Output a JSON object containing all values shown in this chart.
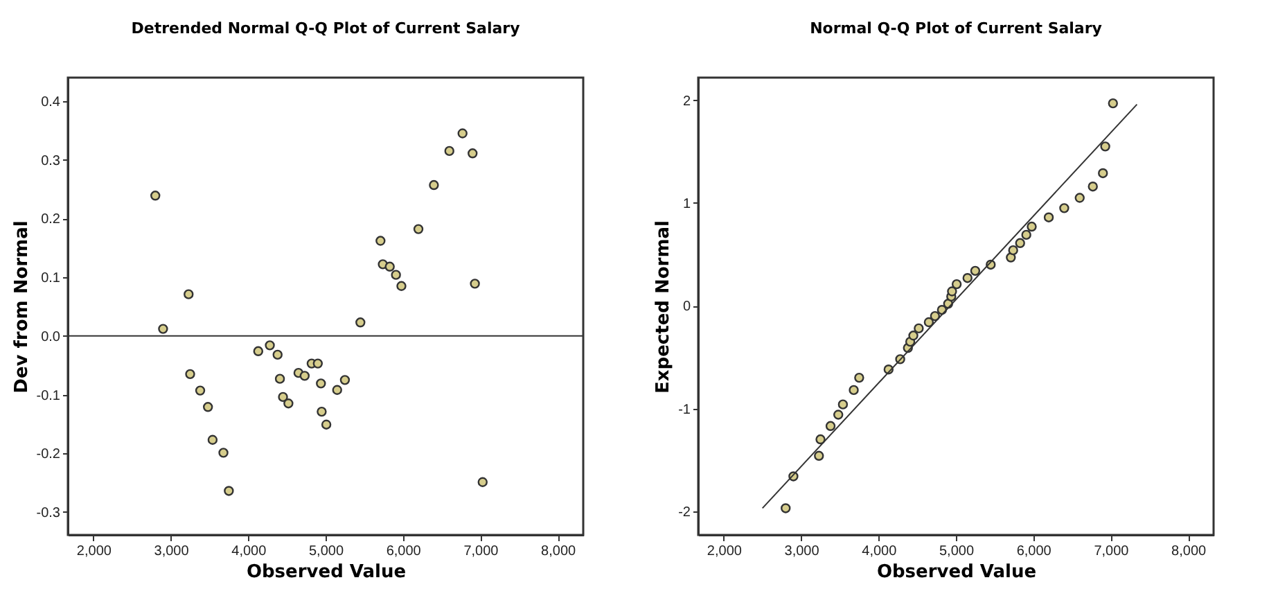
{
  "chart_data": [
    {
      "type": "scatter",
      "title": "Detrended Normal Q-Q Plot of Current Salary",
      "xlabel": "Observed Value",
      "ylabel": "Dev from Normal",
      "x": [
        2800,
        2900,
        3230,
        3250,
        3380,
        3480,
        3540,
        3680,
        3750,
        4130,
        4280,
        4380,
        4410,
        4450,
        4520,
        4650,
        4730,
        4820,
        4900,
        4940,
        4950,
        5010,
        5150,
        5250,
        5450,
        5710,
        5740,
        5830,
        5910,
        5980,
        6200,
        6400,
        6600,
        6770,
        6900,
        6930,
        7030
      ],
      "series": [
        {
          "color": "#d6cd8c",
          "marker": "circle",
          "values": [
            0.239,
            0.012,
            0.071,
            -0.065,
            -0.093,
            -0.121,
            -0.177,
            -0.199,
            -0.264,
            -0.026,
            -0.016,
            -0.032,
            -0.073,
            -0.104,
            -0.115,
            -0.063,
            -0.068,
            -0.047,
            -0.047,
            -0.081,
            -0.129,
            -0.151,
            -0.092,
            -0.075,
            0.023,
            0.162,
            0.122,
            0.118,
            0.104,
            0.085,
            0.182,
            0.257,
            0.315,
            0.345,
            0.311,
            0.089,
            -0.249
          ]
        }
      ],
      "xlim": [
        1670,
        8330
      ],
      "ylim": [
        -0.339,
        0.44
      ],
      "xticks": [
        {
          "value": 2000,
          "label": "2,000"
        },
        {
          "value": 3000,
          "label": "3,000"
        },
        {
          "value": 4000,
          "label": "4,000"
        },
        {
          "value": 5000,
          "label": "5,000"
        },
        {
          "value": 6000,
          "label": "6,000"
        },
        {
          "value": 7000,
          "label": "7,000"
        },
        {
          "value": 8000,
          "label": "8,000"
        }
      ],
      "yticks": [
        -0.3,
        -0.2,
        -0.1,
        {
          "value": 0,
          "label": "0.0"
        },
        0.1,
        0.2,
        0.3,
        0.4
      ],
      "ref_lines": [
        {
          "axis": "y",
          "value": 0,
          "color": "#333333"
        }
      ]
    },
    {
      "type": "scatter",
      "title": "Normal Q-Q Plot of Current Salary",
      "xlabel": "Observed Value",
      "ylabel": "Expected Normal",
      "x": [
        2800,
        2900,
        3230,
        3250,
        3380,
        3480,
        3540,
        3680,
        3750,
        4130,
        4280,
        4380,
        4410,
        4450,
        4520,
        4650,
        4730,
        4820,
        4900,
        4940,
        4950,
        5010,
        5150,
        5250,
        5450,
        5710,
        5740,
        5830,
        5910,
        5980,
        6200,
        6400,
        6600,
        6770,
        6900,
        6930,
        7030
      ],
      "series": [
        {
          "color": "#d6cd8c",
          "marker": "circle",
          "values": [
            -1.97,
            -1.66,
            -1.46,
            -1.3,
            -1.17,
            -1.06,
            -0.96,
            -0.82,
            -0.7,
            -0.62,
            -0.52,
            -0.41,
            -0.35,
            -0.29,
            -0.22,
            -0.16,
            -0.1,
            -0.04,
            0.02,
            0.09,
            0.14,
            0.21,
            0.27,
            0.34,
            0.4,
            0.47,
            0.54,
            0.61,
            0.69,
            0.77,
            0.86,
            0.95,
            1.05,
            1.16,
            1.29,
            1.55,
            1.97
          ]
        },
        {
          "type": "line",
          "color": "#333333",
          "marker": "none",
          "x": [
            2500,
            7340
          ],
          "values": [
            -1.97,
            1.96
          ]
        }
      ],
      "xlim": [
        1670,
        8330
      ],
      "ylim": [
        -2.23,
        2.22
      ],
      "xticks": [
        {
          "value": 2000,
          "label": "2,000"
        },
        {
          "value": 3000,
          "label": "3,000"
        },
        {
          "value": 4000,
          "label": "4,000"
        },
        {
          "value": 5000,
          "label": "5,000"
        },
        {
          "value": 6000,
          "label": "6,000"
        },
        {
          "value": 7000,
          "label": "7,000"
        },
        {
          "value": 8000,
          "label": "8,000"
        }
      ],
      "yticks": [
        -2,
        -1,
        0,
        1,
        2
      ]
    }
  ]
}
